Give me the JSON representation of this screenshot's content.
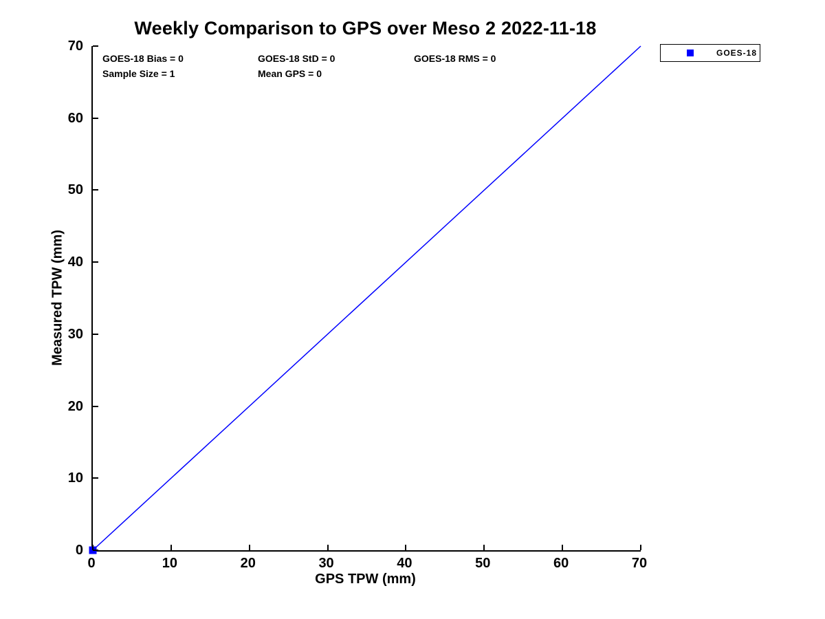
{
  "colors": {
    "series_blue": "#0000ff",
    "axis": "#000000",
    "background": "#ffffff",
    "text": "#000000"
  },
  "chart_data": {
    "type": "scatter",
    "title": "Weekly Comparison to GPS over Meso 2 2022-11-18",
    "xlabel": "GPS TPW (mm)",
    "ylabel": "Measured TPW (mm)",
    "xlim": [
      0,
      70
    ],
    "ylim": [
      0,
      70
    ],
    "xticks": [
      0,
      10,
      20,
      30,
      40,
      50,
      60,
      70
    ],
    "yticks": [
      0,
      10,
      20,
      30,
      40,
      50,
      60,
      70
    ],
    "grid": false,
    "axis_box": "left-bottom-only",
    "tick_direction": "in",
    "legend": {
      "entries": [
        "GOES-18"
      ],
      "position": "outside-top-right",
      "marker": "filled-square",
      "marker_color": "#0000ff"
    },
    "series": [
      {
        "name": "GOES-18",
        "plot_type": "scatter",
        "marker": "square",
        "marker_size": 11,
        "color": "#0000ff",
        "points": [
          [
            0,
            0
          ]
        ]
      },
      {
        "name": "identity-line",
        "plot_type": "line",
        "color": "#0000ff",
        "line_width": 1.5,
        "points": [
          [
            0,
            0
          ],
          [
            70,
            70
          ]
        ]
      }
    ],
    "stats_annotations": [
      {
        "text": "GOES-18 Bias = 0",
        "row": 1,
        "col": 1
      },
      {
        "text": "GOES-18 StD = 0",
        "row": 1,
        "col": 2
      },
      {
        "text": "GOES-18 RMS = 0",
        "row": 1,
        "col": 3
      },
      {
        "text": "Sample Size = 1",
        "row": 2,
        "col": 1
      },
      {
        "text": "Mean GPS = 0",
        "row": 2,
        "col": 2
      }
    ]
  }
}
